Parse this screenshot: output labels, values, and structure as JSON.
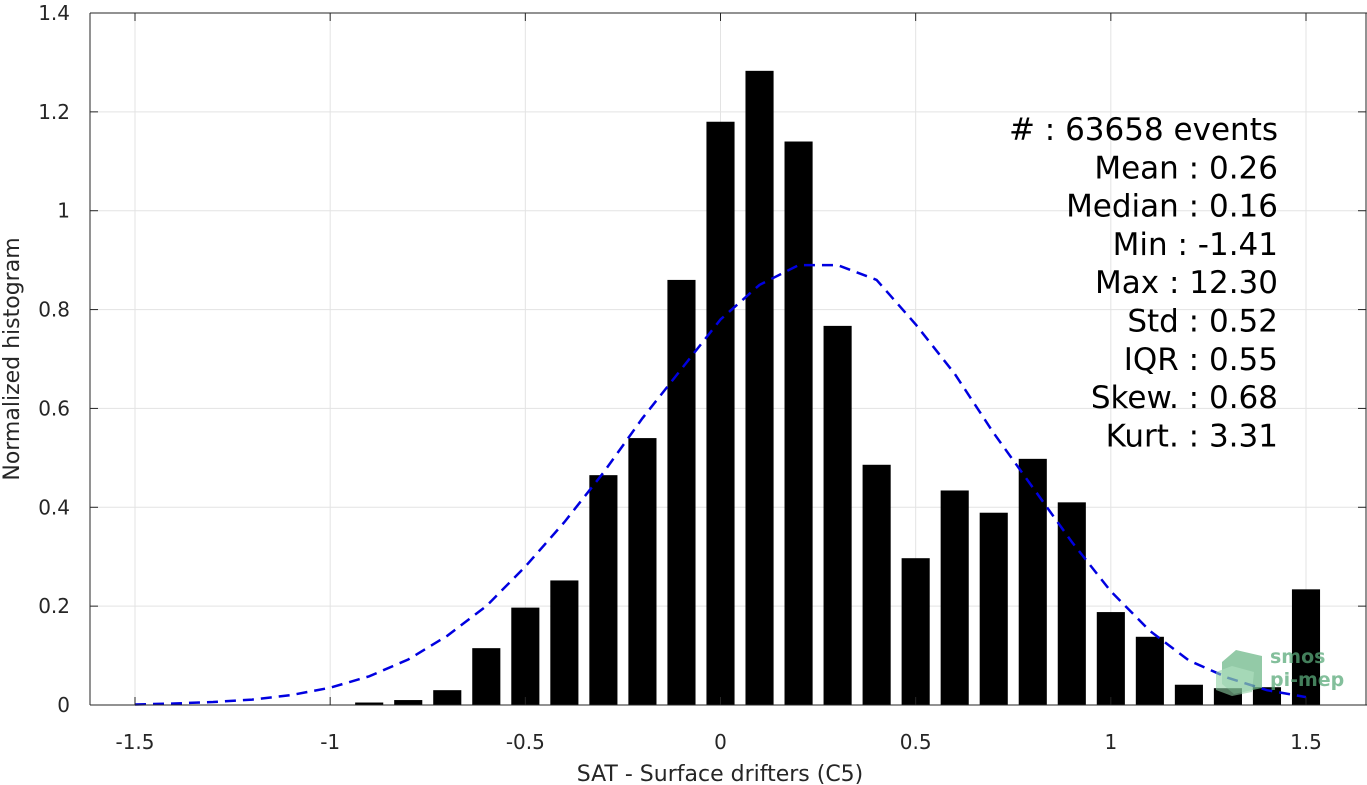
{
  "chart_data": {
    "type": "bar",
    "xlabel": "SAT - Surface drifters (C5)",
    "ylabel": "Normalized histogram",
    "xlim": [
      -1.5,
      1.5
    ],
    "ylim": [
      0,
      1.4
    ],
    "xticks": [
      "-1.5",
      "-1",
      "-0.5",
      "0",
      "0.5",
      "1",
      "1.5"
    ],
    "yticks": [
      "0",
      "0.2",
      "0.4",
      "0.6",
      "0.8",
      "1",
      "1.2",
      "1.4"
    ],
    "grid": true,
    "bars": {
      "x": [
        -0.9,
        -0.8,
        -0.7,
        -0.6,
        -0.5,
        -0.4,
        -0.3,
        -0.2,
        -0.1,
        0.0,
        0.1,
        0.2,
        0.3,
        0.4,
        0.5,
        0.6,
        0.7,
        0.8,
        0.9,
        1.0,
        1.1,
        1.2,
        1.3,
        1.4,
        1.5
      ],
      "values": [
        0.005,
        0.01,
        0.03,
        0.115,
        0.197,
        0.252,
        0.465,
        0.54,
        0.86,
        1.18,
        1.283,
        1.14,
        0.767,
        0.486,
        0.297,
        0.434,
        0.389,
        0.498,
        0.41,
        0.188,
        0.138,
        0.041,
        0.034,
        0.036,
        0.234
      ],
      "color": "#000000"
    },
    "fit_curve": {
      "style": "dashed",
      "color": "#0000e0",
      "mean": 0.26,
      "std": 0.52,
      "x": [
        -1.5,
        -1.4,
        -1.3,
        -1.2,
        -1.1,
        -1.0,
        -0.9,
        -0.8,
        -0.7,
        -0.6,
        -0.5,
        -0.4,
        -0.3,
        -0.2,
        -0.1,
        0.0,
        0.1,
        0.2,
        0.3,
        0.4,
        0.5,
        0.6,
        0.7,
        0.8,
        0.9,
        1.0,
        1.1,
        1.2,
        1.3,
        1.4,
        1.5
      ],
      "y": [
        0.001,
        0.003,
        0.006,
        0.011,
        0.02,
        0.035,
        0.058,
        0.092,
        0.14,
        0.2,
        0.28,
        0.37,
        0.47,
        0.58,
        0.68,
        0.78,
        0.85,
        0.89,
        0.89,
        0.86,
        0.77,
        0.67,
        0.55,
        0.44,
        0.33,
        0.23,
        0.15,
        0.09,
        0.055,
        0.03,
        0.016
      ]
    },
    "stats": [
      "#  : 63658 events",
      "Mean : 0.26",
      "Median : 0.16",
      "Min : -1.41",
      "Max : 12.30",
      "Std : 0.52",
      "IQR : 0.55",
      "Skew. : 0.68",
      "Kurt. : 3.31"
    ]
  },
  "logo": {
    "line1": "smos",
    "line2": "pi-mep",
    "color": "#4a9a6a"
  }
}
